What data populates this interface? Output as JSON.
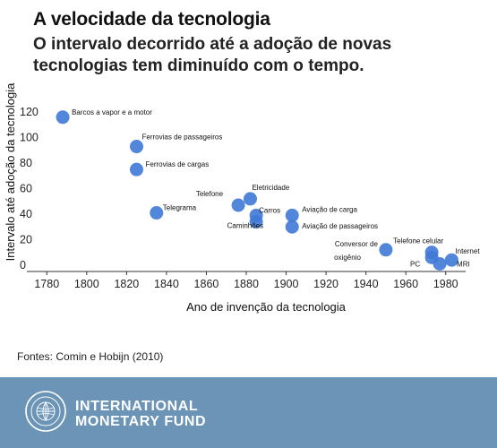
{
  "title": "A velocidade da tecnologia",
  "subtitle": "O intervalo decorrido até a adoção de novas tecnologias tem diminuído com o tempo.",
  "source": "Fontes: Comin e Hobijn (2010)",
  "footer": {
    "org_line1": "INTERNATIONAL",
    "org_line2": "MONETARY FUND",
    "logo_icon": "imf-seal-icon",
    "background_color": "#6b94b6"
  },
  "chart_data": {
    "type": "scatter",
    "title": "A velocidade da tecnologia",
    "xlabel": "Ano de invenção da tecnologia",
    "ylabel": "Intervalo até adoção da tecnologia",
    "xlim": [
      1770,
      1990
    ],
    "ylim": [
      -5,
      125
    ],
    "xticks": [
      1780,
      1800,
      1820,
      1840,
      1860,
      1880,
      1900,
      1920,
      1940,
      1960,
      1980
    ],
    "yticks": [
      0,
      20,
      40,
      60,
      80,
      100,
      120
    ],
    "grid": false,
    "legend": "none",
    "point_color": "#3f79d6",
    "points": [
      {
        "label": "Barcos a vapor e a motor",
        "x": 1788,
        "y": 116
      },
      {
        "label": "Ferrovias de passageiros",
        "x": 1825,
        "y": 93
      },
      {
        "label": "Ferrovias de  cargas",
        "x": 1825,
        "y": 75
      },
      {
        "label": "Telegrama",
        "x": 1835,
        "y": 41
      },
      {
        "label": "Telefone",
        "x": 1876,
        "y": 47
      },
      {
        "label": "Eletricidade",
        "x": 1882,
        "y": 52
      },
      {
        "label": "Carros",
        "x": 1885,
        "y": 39
      },
      {
        "label": "Caminhões",
        "x": 1885,
        "y": 34
      },
      {
        "label": "Aviação de carga",
        "x": 1903,
        "y": 39
      },
      {
        "label": "Aviação de passageiros",
        "x": 1903,
        "y": 30
      },
      {
        "label": "Conversor de oxigênio",
        "x": 1950,
        "y": 12
      },
      {
        "label": "Telefone celular",
        "x": 1973,
        "y": 10
      },
      {
        "label": "PC",
        "x": 1973,
        "y": 6
      },
      {
        "label": "MRI",
        "x": 1977,
        "y": 1
      },
      {
        "label": "Internet",
        "x": 1983,
        "y": 4
      }
    ]
  }
}
